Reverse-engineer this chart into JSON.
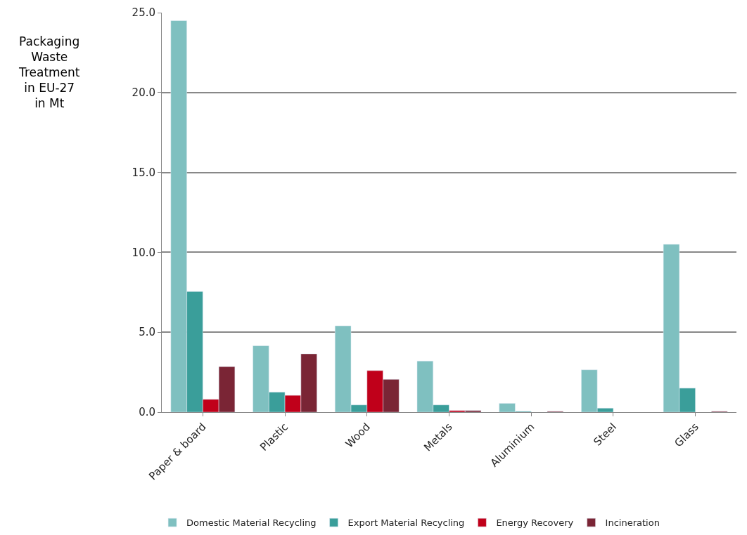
{
  "chart_data": {
    "type": "bar",
    "ylabel": "Packaging Waste Treatment in EU-27 in Mt",
    "categories": [
      "Paper & board",
      "Plastic",
      "Wood",
      "Metals",
      "Aluminium",
      "Steel",
      "Glass"
    ],
    "series": [
      {
        "name": "Domestic Material Recycling",
        "color": "#7fc0c0",
        "values": [
          24.5,
          4.15,
          5.4,
          3.2,
          0.55,
          2.65,
          10.5
        ]
      },
      {
        "name": "Export Material Recycling",
        "color": "#3a9e9a",
        "values": [
          7.55,
          1.25,
          0.45,
          0.45,
          0.05,
          0.25,
          1.5
        ]
      },
      {
        "name": "Energy Recovery",
        "color": "#c0001a",
        "values": [
          0.8,
          1.05,
          2.6,
          0.1,
          null,
          null,
          null
        ]
      },
      {
        "name": "Incineration",
        "color": "#7a2535",
        "values": [
          2.85,
          3.65,
          2.05,
          0.1,
          0.05,
          null,
          0.05
        ]
      }
    ],
    "ylim": [
      0,
      25
    ],
    "yticks": [
      {
        "value": 0,
        "label": "0.0"
      },
      {
        "value": 5,
        "label": "5.0"
      },
      {
        "value": 10,
        "label": "10.0"
      },
      {
        "value": 15,
        "label": "15.0"
      },
      {
        "value": 20,
        "label": "20.0"
      },
      {
        "value": 25,
        "label": "25.0"
      }
    ],
    "grid": "y",
    "legend": "bottom"
  }
}
